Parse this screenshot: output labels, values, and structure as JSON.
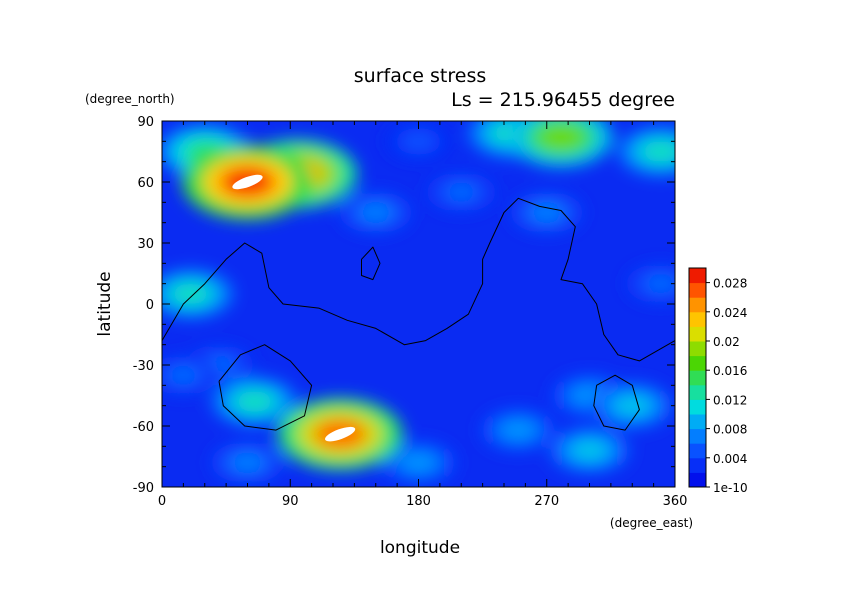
{
  "chart_data": {
    "type": "heatmap",
    "title": "surface stress",
    "subtitle": "Ls = 215.96455 degree",
    "xlabel": "longitude",
    "ylabel": "latitude",
    "xunit": "(degree_east)",
    "yunit": "(degree_north)",
    "xlim": [
      0,
      360
    ],
    "ylim": [
      -90,
      90
    ],
    "xticks": [
      0,
      90,
      180,
      270,
      360
    ],
    "yticks": [
      -90,
      -60,
      -30,
      0,
      30,
      60,
      90
    ],
    "colorbar": {
      "min": 0,
      "max": 0.03,
      "ticks": [
        {
          "value": 0,
          "label": "1e-10"
        },
        {
          "value": 0.004,
          "label": "0.004"
        },
        {
          "value": 0.008,
          "label": "0.008"
        },
        {
          "value": 0.012,
          "label": "0.012"
        },
        {
          "value": 0.016,
          "label": "0.016"
        },
        {
          "value": 0.02,
          "label": "0.02"
        },
        {
          "value": 0.024,
          "label": "0.024"
        },
        {
          "value": 0.028,
          "label": "0.028"
        }
      ]
    },
    "background_value": 0.002,
    "field_features": [
      {
        "lon": 60,
        "lat": 60,
        "value": 0.028
      },
      {
        "lon": 95,
        "lat": 64,
        "value": 0.024
      },
      {
        "lon": 30,
        "lat": 75,
        "value": 0.014
      },
      {
        "lon": 280,
        "lat": 82,
        "value": 0.018
      },
      {
        "lon": 245,
        "lat": 84,
        "value": 0.012
      },
      {
        "lon": 125,
        "lat": -64,
        "value": 0.026
      },
      {
        "lon": 65,
        "lat": -48,
        "value": 0.012
      },
      {
        "lon": 20,
        "lat": 5,
        "value": 0.012
      },
      {
        "lon": 330,
        "lat": -50,
        "value": 0.01
      },
      {
        "lon": 300,
        "lat": -45,
        "value": 0.008
      },
      {
        "lon": 250,
        "lat": -62,
        "value": 0.008
      },
      {
        "lon": 300,
        "lat": -72,
        "value": 0.01
      },
      {
        "lon": 180,
        "lat": -78,
        "value": 0.008
      },
      {
        "lon": 60,
        "lat": -78,
        "value": 0.007
      },
      {
        "lon": 350,
        "lat": 75,
        "value": 0.012
      },
      {
        "lon": 150,
        "lat": 45,
        "value": 0.007
      },
      {
        "lon": 270,
        "lat": 45,
        "value": 0.007
      },
      {
        "lon": 210,
        "lat": 55,
        "value": 0.006
      },
      {
        "lon": 40,
        "lat": -30,
        "value": 0.006
      },
      {
        "lon": 15,
        "lat": -35,
        "value": 0.006
      },
      {
        "lon": 180,
        "lat": 80,
        "value": 0.005
      },
      {
        "lon": 350,
        "lat": 10,
        "value": 0.006
      }
    ],
    "contours": [
      [
        [
          0,
          -18
        ],
        [
          15,
          0
        ],
        [
          30,
          10
        ],
        [
          45,
          22
        ],
        [
          58,
          30
        ],
        [
          70,
          25
        ],
        [
          75,
          8
        ],
        [
          85,
          0
        ],
        [
          110,
          -2
        ],
        [
          130,
          -8
        ],
        [
          150,
          -12
        ],
        [
          170,
          -20
        ],
        [
          185,
          -18
        ],
        [
          200,
          -12
        ],
        [
          215,
          -5
        ],
        [
          225,
          10
        ],
        [
          225,
          22
        ],
        [
          230,
          30
        ],
        [
          240,
          45
        ],
        [
          250,
          52
        ],
        [
          265,
          48
        ],
        [
          280,
          46
        ],
        [
          290,
          38
        ],
        [
          285,
          22
        ],
        [
          280,
          12
        ],
        [
          295,
          10
        ],
        [
          305,
          0
        ],
        [
          310,
          -15
        ],
        [
          320,
          -25
        ],
        [
          335,
          -28
        ],
        [
          350,
          -22
        ],
        [
          360,
          -18
        ]
      ],
      [
        [
          140,
          22
        ],
        [
          148,
          28
        ],
        [
          153,
          20
        ],
        [
          148,
          12
        ],
        [
          140,
          14
        ],
        [
          140,
          22
        ]
      ],
      [
        [
          40,
          -38
        ],
        [
          55,
          -25
        ],
        [
          72,
          -20
        ],
        [
          90,
          -28
        ],
        [
          105,
          -40
        ],
        [
          100,
          -55
        ],
        [
          80,
          -62
        ],
        [
          58,
          -60
        ],
        [
          43,
          -50
        ],
        [
          40,
          -38
        ]
      ],
      [
        [
          305,
          -40
        ],
        [
          318,
          -35
        ],
        [
          330,
          -40
        ],
        [
          335,
          -52
        ],
        [
          325,
          -62
        ],
        [
          310,
          -60
        ],
        [
          303,
          -50
        ],
        [
          305,
          -40
        ]
      ]
    ]
  }
}
